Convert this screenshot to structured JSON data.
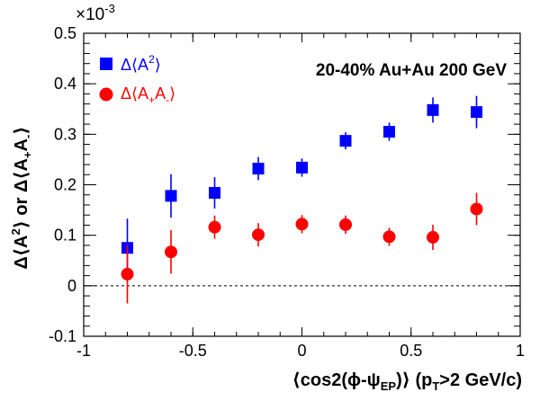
{
  "chart_data": {
    "type": "scatter",
    "title": "",
    "annotation": "20-40% Au+Au 200 GeV",
    "exponent_prefix": "×10",
    "exponent_power": "-3",
    "xlim": [
      -1,
      1
    ],
    "ylim": [
      -0.1,
      0.5
    ],
    "x_ticks": [
      -1,
      -0.5,
      0,
      0.5,
      1
    ],
    "x_tick_labels": [
      "-1",
      "-0.5",
      "0",
      "0.5",
      "1"
    ],
    "y_ticks": [
      -0.1,
      0,
      0.1,
      0.2,
      0.3,
      0.4,
      0.5
    ],
    "y_tick_labels": [
      "-0.1",
      "0",
      "0.1",
      "0.2",
      "0.3",
      "0.4",
      "0.5"
    ],
    "grid": false,
    "reference_line": {
      "y": 0,
      "style": "dashed"
    },
    "legend_position": "top-left",
    "xlabel": {
      "prefix": "⟨cos2(ϕ-ψ",
      "sub1": "EP",
      "mid": ")⟩ (p",
      "sub2": "T",
      "suffix": ">2 GeV/c)"
    },
    "ylabel": {
      "part1": "Δ⟨A",
      "sup": "2",
      "part2": "⟩ or Δ⟨A",
      "sub1": "+",
      "part3": "A",
      "sub2": "-",
      "part4": "⟩"
    },
    "series": [
      {
        "name": "Δ⟨A²⟩",
        "marker": "square",
        "color": "#0000ff",
        "x": [
          -0.8,
          -0.6,
          -0.4,
          -0.2,
          0.0,
          0.2,
          0.4,
          0.6,
          0.8
        ],
        "y": [
          0.075,
          0.178,
          0.184,
          0.232,
          0.234,
          0.287,
          0.305,
          0.348,
          0.344
        ],
        "err": [
          0.058,
          0.043,
          0.031,
          0.023,
          0.018,
          0.017,
          0.018,
          0.025,
          0.032
        ]
      },
      {
        "name": "Δ⟨A₊A₋⟩",
        "marker": "circle",
        "color": "#ff0000",
        "x": [
          -0.8,
          -0.6,
          -0.4,
          -0.2,
          0.0,
          0.2,
          0.4,
          0.6,
          0.8
        ],
        "y": [
          0.023,
          0.067,
          0.116,
          0.101,
          0.122,
          0.121,
          0.097,
          0.096,
          0.152
        ],
        "err": [
          0.058,
          0.043,
          0.023,
          0.023,
          0.018,
          0.018,
          0.018,
          0.025,
          0.032
        ]
      }
    ],
    "legend": [
      {
        "label_main": "Δ⟨A",
        "label_sup": "2",
        "label_end": "⟩"
      },
      {
        "label_main": "Δ⟨A",
        "label_sub1": "+",
        "label_mid": "A",
        "label_sub2": "-",
        "label_end": "⟩"
      }
    ]
  }
}
